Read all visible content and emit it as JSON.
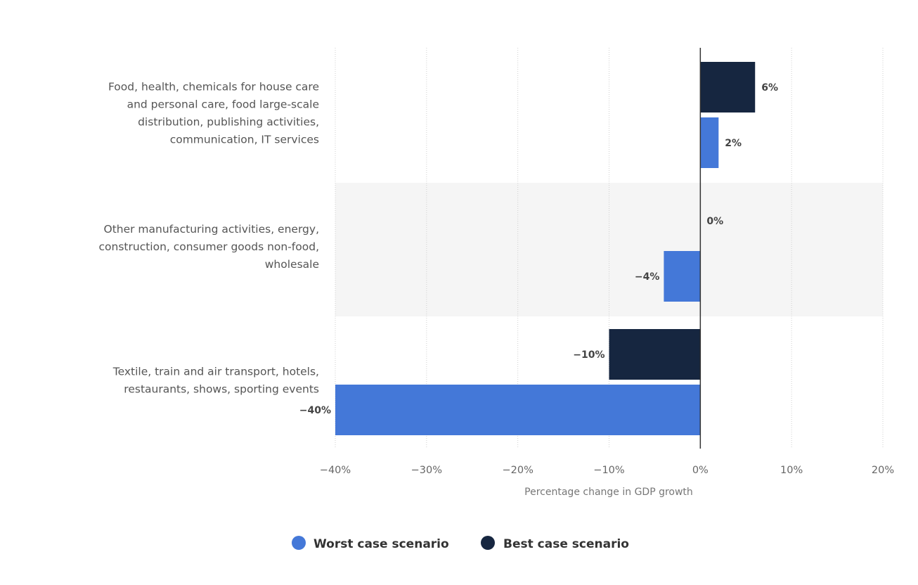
{
  "chart_data": {
    "type": "bar",
    "orientation": "horizontal",
    "categories": [
      [
        "Food, health, chemicals for house care",
        "and personal care, food large-scale",
        "distribution, publishing activities,",
        "communication, IT services"
      ],
      [
        "Other manufacturing activities, energy,",
        "construction, consumer goods non-food,",
        "wholesale"
      ],
      [
        "Textile, train and air transport, hotels,",
        "restaurants, shows, sporting events"
      ]
    ],
    "series": [
      {
        "name": "Best case scenario",
        "color": "#162640",
        "values": [
          6,
          0,
          -10
        ],
        "labels": [
          "6%",
          "0%",
          "-10%"
        ]
      },
      {
        "name": "Worst case scenario",
        "color": "#4478d8",
        "values": [
          2,
          -4,
          -40
        ],
        "labels": [
          "2%",
          "-4%",
          "-40%"
        ]
      }
    ],
    "xlim": [
      -40,
      20
    ],
    "xticks": [
      -40,
      -30,
      -20,
      -10,
      0,
      10,
      20
    ],
    "xtick_labels": [
      "-40%",
      "-30%",
      "-20%",
      "-10%",
      "0%",
      "10%",
      "20%"
    ],
    "xlabel": "Percentage change in GDP growth",
    "legend": {
      "position": "bottom",
      "items": [
        {
          "label": "Worst case scenario",
          "color": "#4478d8"
        },
        {
          "label": "Best case scenario",
          "color": "#162640"
        }
      ]
    },
    "grid": true,
    "band_color": "#f5f5f5"
  }
}
